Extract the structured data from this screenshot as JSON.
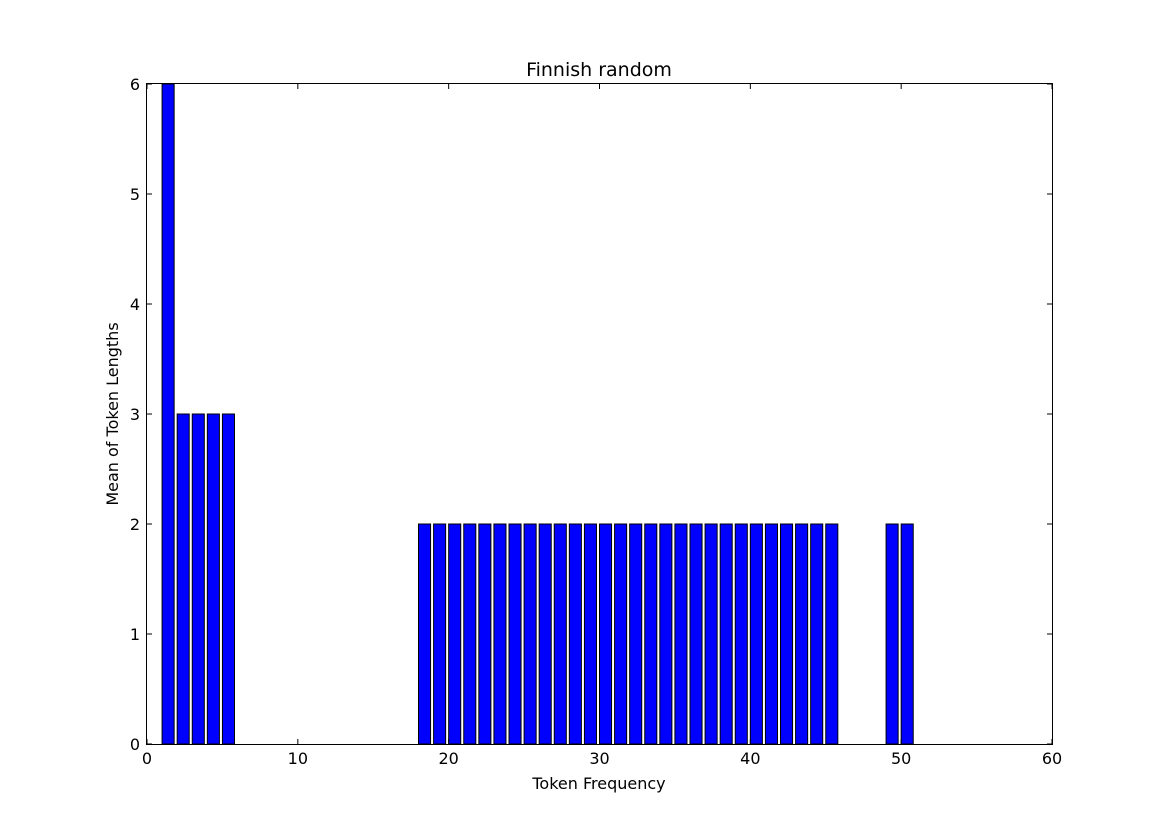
{
  "chart_data": {
    "type": "bar",
    "title": "Finnish random",
    "xlabel": "Token Frequency",
    "ylabel": "Mean of Token Lengths",
    "xlim": [
      0,
      60
    ],
    "ylim": [
      0,
      6
    ],
    "xticks": [
      "0",
      "10",
      "20",
      "30",
      "40",
      "50",
      "60"
    ],
    "yticks": [
      "0",
      "1",
      "2",
      "3",
      "4",
      "5",
      "6"
    ],
    "bar_width": 0.8,
    "bar_color": "#0000ff",
    "edge_color": "#000000",
    "grid": false,
    "legend": "none",
    "x": [
      1,
      2,
      3,
      4,
      5,
      18,
      19,
      20,
      21,
      22,
      23,
      24,
      25,
      26,
      27,
      28,
      29,
      30,
      31,
      32,
      33,
      34,
      35,
      36,
      37,
      38,
      39,
      40,
      41,
      42,
      43,
      44,
      45,
      49,
      50
    ],
    "values": [
      6,
      3,
      3,
      3,
      3,
      2,
      2,
      2,
      2,
      2,
      2,
      2,
      2,
      2,
      2,
      2,
      2,
      2,
      2,
      2,
      2,
      2,
      2,
      2,
      2,
      2,
      2,
      2,
      2,
      2,
      2,
      2,
      2,
      2,
      2
    ]
  }
}
